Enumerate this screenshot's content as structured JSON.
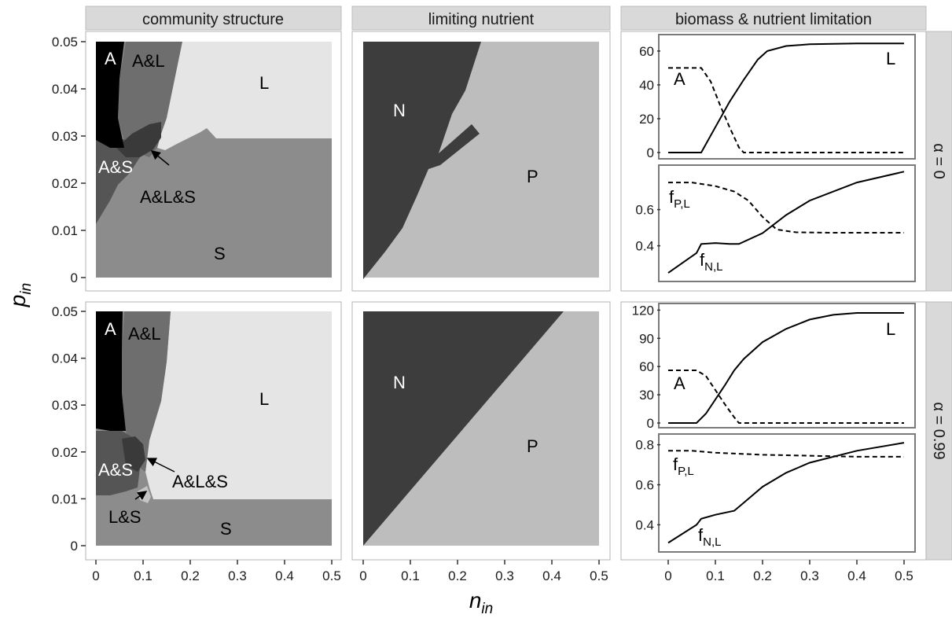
{
  "strips": {
    "columns": [
      "community structure",
      "limiting nutrient",
      "biomass & nutrient limitation"
    ],
    "rows": [
      "α = 0",
      "α = 0.99"
    ]
  },
  "axes": {
    "xlabel_base": "n",
    "xlabel_sub": "in",
    "ylabel_base": "p",
    "ylabel_sub": "in",
    "x_ticks": [
      "0",
      "0.1",
      "0.2",
      "0.3",
      "0.4",
      "0.5"
    ],
    "y_ticks": [
      "0",
      "0.01",
      "0.02",
      "0.03",
      "0.04",
      "0.05"
    ]
  },
  "colors": {
    "strip_bg": "#d9d9d9",
    "panel_border": "#b3b3b3",
    "A": "#000000",
    "AL": "#6e6e6e",
    "AS": "#555555",
    "ALS": "#3a3a3a",
    "LS": "#c4c4c4",
    "L": "#e5e5e5",
    "S": "#8c8c8c",
    "N_region": "#3d3d3d",
    "P_region": "#bdbdbd"
  },
  "chart_data": [
    {
      "type": "heatmap",
      "title": "community structure",
      "facet": "α = 0",
      "xlim": [
        0,
        0.5
      ],
      "ylim": [
        0,
        0.05
      ],
      "labels": [
        {
          "text": "A",
          "x": 0.03,
          "y": 0.0475,
          "fill": "#ffffff"
        },
        {
          "text": "A&L",
          "x": 0.12,
          "y": 0.0465,
          "fill": "#000000"
        },
        {
          "text": "L",
          "x": 0.36,
          "y": 0.041,
          "fill": "#000000"
        },
        {
          "text": "A&S",
          "x": 0.03,
          "y": 0.0235,
          "fill": "#ffffff"
        },
        {
          "text": "A&L&S",
          "x": 0.16,
          "y": 0.0168,
          "fill": "#000000"
        },
        {
          "text": "S",
          "x": 0.26,
          "y": 0.0027,
          "fill": "#000000"
        }
      ],
      "arrow": {
        "from": [
          0.14,
          0.0205
        ],
        "to": [
          0.12,
          0.0265
        ]
      }
    },
    {
      "type": "heatmap",
      "title": "limiting nutrient",
      "facet": "α = 0",
      "xlim": [
        0,
        0.5
      ],
      "ylim": [
        0,
        0.05
      ],
      "labels": [
        {
          "text": "N",
          "x": 0.08,
          "y": 0.035,
          "fill": "#ffffff"
        },
        {
          "text": "P",
          "x": 0.36,
          "y": 0.021,
          "fill": "#000000"
        }
      ]
    },
    {
      "type": "line",
      "facet": "α = 0",
      "ylabel": "",
      "xlim": [
        0,
        0.5
      ],
      "ylim": [
        0,
        66
      ],
      "y_ticks": [
        "0",
        "20",
        "40",
        "60"
      ],
      "series": [
        {
          "name": "L",
          "style": "solid",
          "x": [
            0,
            0.07,
            0.1,
            0.13,
            0.16,
            0.19,
            0.21,
            0.25,
            0.3,
            0.4,
            0.5
          ],
          "values": [
            0,
            0,
            15,
            30,
            43,
            55,
            60,
            63,
            64,
            64.5,
            64.5
          ]
        },
        {
          "name": "A",
          "style": "dashed",
          "x": [
            0,
            0.07,
            0.09,
            0.11,
            0.13,
            0.15,
            0.16,
            0.5
          ],
          "values": [
            50,
            50,
            42,
            28,
            15,
            3,
            0,
            0
          ]
        }
      ],
      "labels": [
        {
          "text": "L",
          "x": 0.48,
          "y": 54
        },
        {
          "text": "A",
          "x": 0.03,
          "y": 40
        }
      ]
    },
    {
      "type": "line",
      "facet": "α = 0",
      "xlim": [
        0,
        0.5
      ],
      "ylim": [
        0.22,
        0.82
      ],
      "y_ticks": [
        "0.4",
        "0.6"
      ],
      "series": [
        {
          "name": "f_P,L",
          "style": "dashed",
          "x": [
            0,
            0.05,
            0.1,
            0.14,
            0.17,
            0.2,
            0.23,
            0.27,
            0.35,
            0.5
          ],
          "values": [
            0.75,
            0.75,
            0.73,
            0.7,
            0.65,
            0.56,
            0.49,
            0.475,
            0.472,
            0.472
          ]
        },
        {
          "name": "f_N,L",
          "style": "solid",
          "x": [
            0,
            0.06,
            0.07,
            0.1,
            0.13,
            0.15,
            0.2,
            0.25,
            0.3,
            0.4,
            0.5
          ],
          "values": [
            0.25,
            0.36,
            0.41,
            0.415,
            0.41,
            0.41,
            0.47,
            0.57,
            0.65,
            0.75,
            0.81
          ]
        }
      ],
      "labels": [
        {
          "text": "f",
          "sub": "P,L",
          "x": 0.0,
          "y": 0.64
        },
        {
          "text": "f",
          "sub": "N,L",
          "x": 0.07,
          "y": 0.31
        }
      ]
    },
    {
      "type": "heatmap",
      "title": "community structure",
      "facet": "α = 0.99",
      "xlim": [
        0,
        0.5
      ],
      "ylim": [
        0,
        0.05
      ],
      "labels": [
        {
          "text": "A",
          "x": 0.03,
          "y": 0.0475,
          "fill": "#ffffff"
        },
        {
          "text": "A&L",
          "x": 0.11,
          "y": 0.0465,
          "fill": "#000000"
        },
        {
          "text": "L",
          "x": 0.36,
          "y": 0.0315,
          "fill": "#000000"
        },
        {
          "text": "A&S",
          "x": 0.04,
          "y": 0.0155,
          "fill": "#ffffff"
        },
        {
          "text": "A&L&S",
          "x": 0.2,
          "y": 0.0135,
          "fill": "#000000"
        },
        {
          "text": "L&S",
          "x": 0.06,
          "y": 0.0055,
          "fill": "#000000"
        },
        {
          "text": "S",
          "x": 0.27,
          "y": 0.0025,
          "fill": "#000000"
        }
      ],
      "arrows": [
        {
          "from": [
            0.16,
            0.0155
          ],
          "to": [
            0.105,
            0.0195
          ]
        },
        {
          "from": [
            0.09,
            0.01
          ],
          "to": [
            0.11,
            0.0125
          ]
        }
      ]
    },
    {
      "type": "heatmap",
      "title": "limiting nutrient",
      "facet": "α = 0.99",
      "xlim": [
        0,
        0.5
      ],
      "ylim": [
        0,
        0.05
      ],
      "labels": [
        {
          "text": "N",
          "x": 0.08,
          "y": 0.034,
          "fill": "#ffffff"
        },
        {
          "text": "P",
          "x": 0.36,
          "y": 0.0195,
          "fill": "#000000"
        }
      ]
    },
    {
      "type": "line",
      "facet": "α = 0.99",
      "xlim": [
        0,
        0.5
      ],
      "ylim": [
        0,
        122
      ],
      "y_ticks": [
        "0",
        "30",
        "60",
        "90",
        "120"
      ],
      "series": [
        {
          "name": "L",
          "style": "solid",
          "x": [
            0,
            0.06,
            0.08,
            0.1,
            0.12,
            0.14,
            0.16,
            0.2,
            0.25,
            0.3,
            0.35,
            0.4,
            0.5
          ],
          "values": [
            0,
            0,
            10,
            25,
            40,
            56,
            68,
            86,
            100,
            110,
            115,
            117,
            117
          ]
        },
        {
          "name": "A",
          "style": "dashed",
          "x": [
            0,
            0.06,
            0.08,
            0.1,
            0.12,
            0.14,
            0.15,
            0.5
          ],
          "values": [
            56,
            56,
            50,
            35,
            20,
            6,
            0,
            0
          ]
        }
      ],
      "labels": [
        {
          "text": "L",
          "x": 0.48,
          "y": 100
        },
        {
          "text": "A",
          "x": 0.03,
          "y": 38
        }
      ]
    },
    {
      "type": "line",
      "facet": "α = 0.99",
      "xlim": [
        0,
        0.5
      ],
      "ylim": [
        0.28,
        0.83
      ],
      "y_ticks": [
        "0.4",
        "0.6",
        "0.8"
      ],
      "series": [
        {
          "name": "f_P,L",
          "style": "dashed",
          "x": [
            0,
            0.05,
            0.1,
            0.2,
            0.3,
            0.4,
            0.5
          ],
          "values": [
            0.77,
            0.77,
            0.76,
            0.75,
            0.745,
            0.74,
            0.74
          ]
        },
        {
          "name": "f_N,L",
          "style": "solid",
          "x": [
            0,
            0.06,
            0.07,
            0.1,
            0.14,
            0.16,
            0.2,
            0.25,
            0.3,
            0.4,
            0.5
          ],
          "values": [
            0.31,
            0.4,
            0.43,
            0.45,
            0.47,
            0.51,
            0.59,
            0.66,
            0.71,
            0.77,
            0.81
          ]
        }
      ],
      "labels": [
        {
          "text": "f",
          "sub": "P,L",
          "x": 0.01,
          "y": 0.7
        },
        {
          "text": "f",
          "sub": "N,L",
          "x": 0.07,
          "y": 0.345
        }
      ]
    }
  ]
}
